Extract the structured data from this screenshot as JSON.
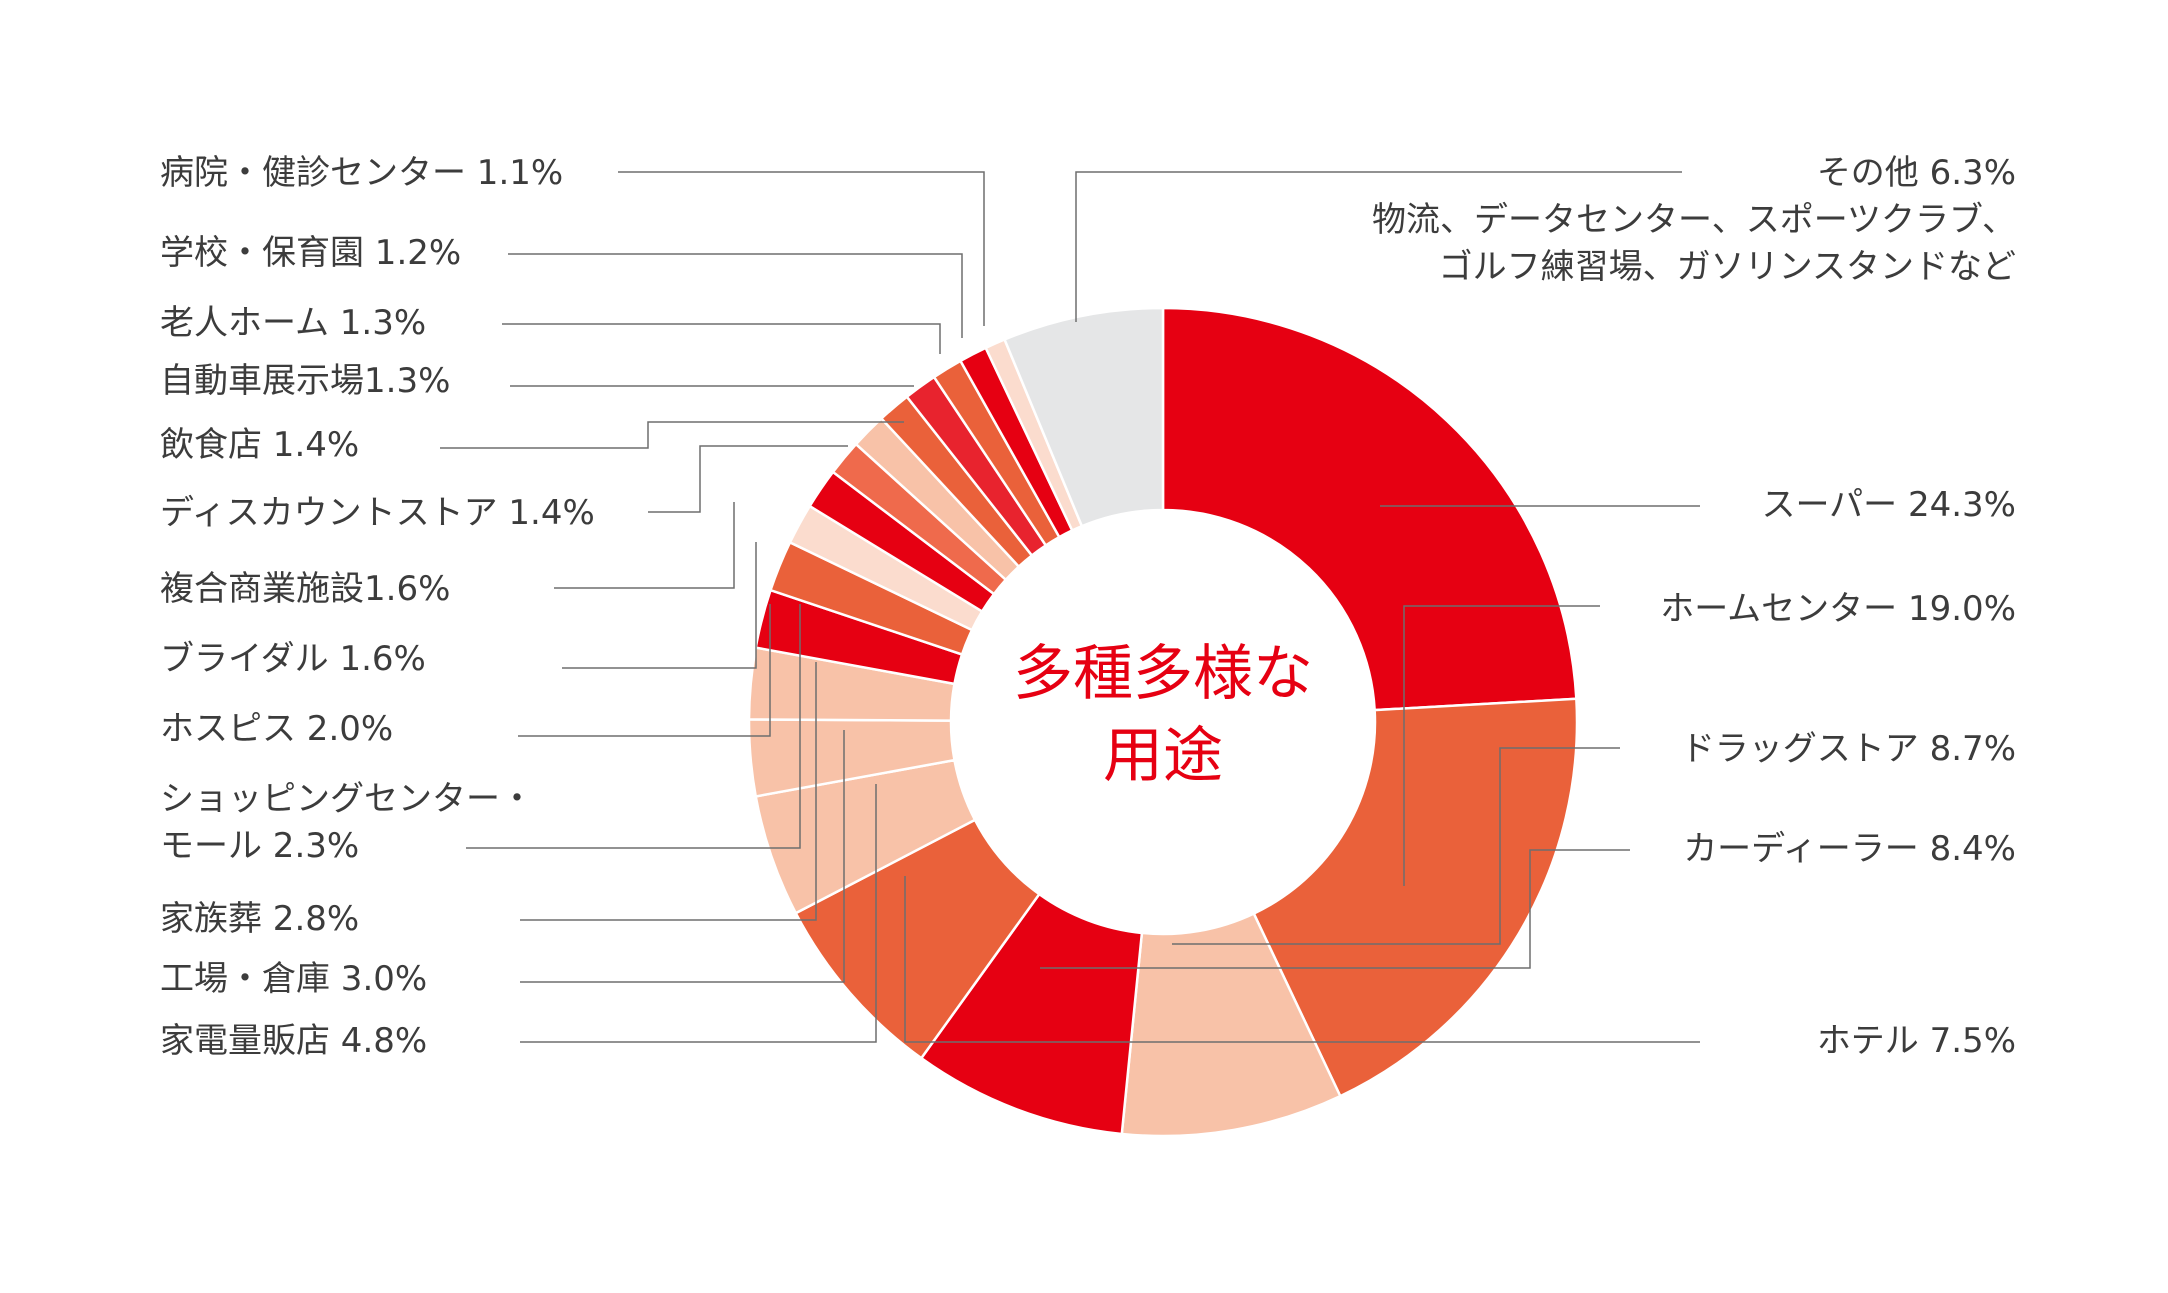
{
  "chart_data": {
    "type": "pie",
    "variant": "donut",
    "center_label": [
      "多種多様な",
      "用途"
    ],
    "center_color": "#e60012",
    "slices": [
      {
        "label": "スーパー 24.3%",
        "value": 24.3,
        "color": "#e60012"
      },
      {
        "label": "ホームセンター 19.0%",
        "value": 19.0,
        "color": "#ea613a"
      },
      {
        "label": "ドラッグストア 8.7%",
        "value": 8.7,
        "color": "#f8c2a8"
      },
      {
        "label": "カーディーラー 8.4%",
        "value": 8.4,
        "color": "#e60012"
      },
      {
        "label": "ホテル 7.5%",
        "value": 7.5,
        "color": "#ea613a"
      },
      {
        "label": "家電量販店 4.8%",
        "value": 4.8,
        "color": "#f8c2a8"
      },
      {
        "label": "工場・倉庫 3.0%",
        "value": 3.0,
        "color": "#f8c2a8"
      },
      {
        "label": "家族葬 2.8%",
        "value": 2.8,
        "color": "#f8c2a8"
      },
      {
        "label": [
          "ショッピングセンター・",
          "モール 2.3%"
        ],
        "value": 2.3,
        "color": "#e60012"
      },
      {
        "label": "ホスピス 2.0%",
        "value": 2.0,
        "color": "#ea613a"
      },
      {
        "label": "ブライダル 1.6%",
        "value": 1.6,
        "color": "#fbdcce"
      },
      {
        "label": "複合商業施設1.6%",
        "value": 1.6,
        "color": "#e60012"
      },
      {
        "label": "ディスカウントストア 1.4%",
        "value": 1.4,
        "color": "#ef6a4c"
      },
      {
        "label": "飲食店 1.4%",
        "value": 1.4,
        "color": "#f8c2a8"
      },
      {
        "label": "自動車展示場1.3%",
        "value": 1.3,
        "color": "#ea613a"
      },
      {
        "label": "老人ホーム 1.3%",
        "value": 1.3,
        "color": "#e8232e"
      },
      {
        "label": "学校・保育園 1.2%",
        "value": 1.2,
        "color": "#ea613a"
      },
      {
        "label": "病院・健診センター 1.1%",
        "value": 1.1,
        "color": "#e60012"
      },
      {
        "label": "",
        "value": 0.8,
        "color": "#fbdcce"
      },
      {
        "label": [
          "その他 6.3%",
          "物流、データセンター、スポーツクラブ、",
          "ゴルフ練習場、ガソリンスタンドなど"
        ],
        "value": 6.3,
        "color": "#e5e6e7"
      }
    ]
  }
}
